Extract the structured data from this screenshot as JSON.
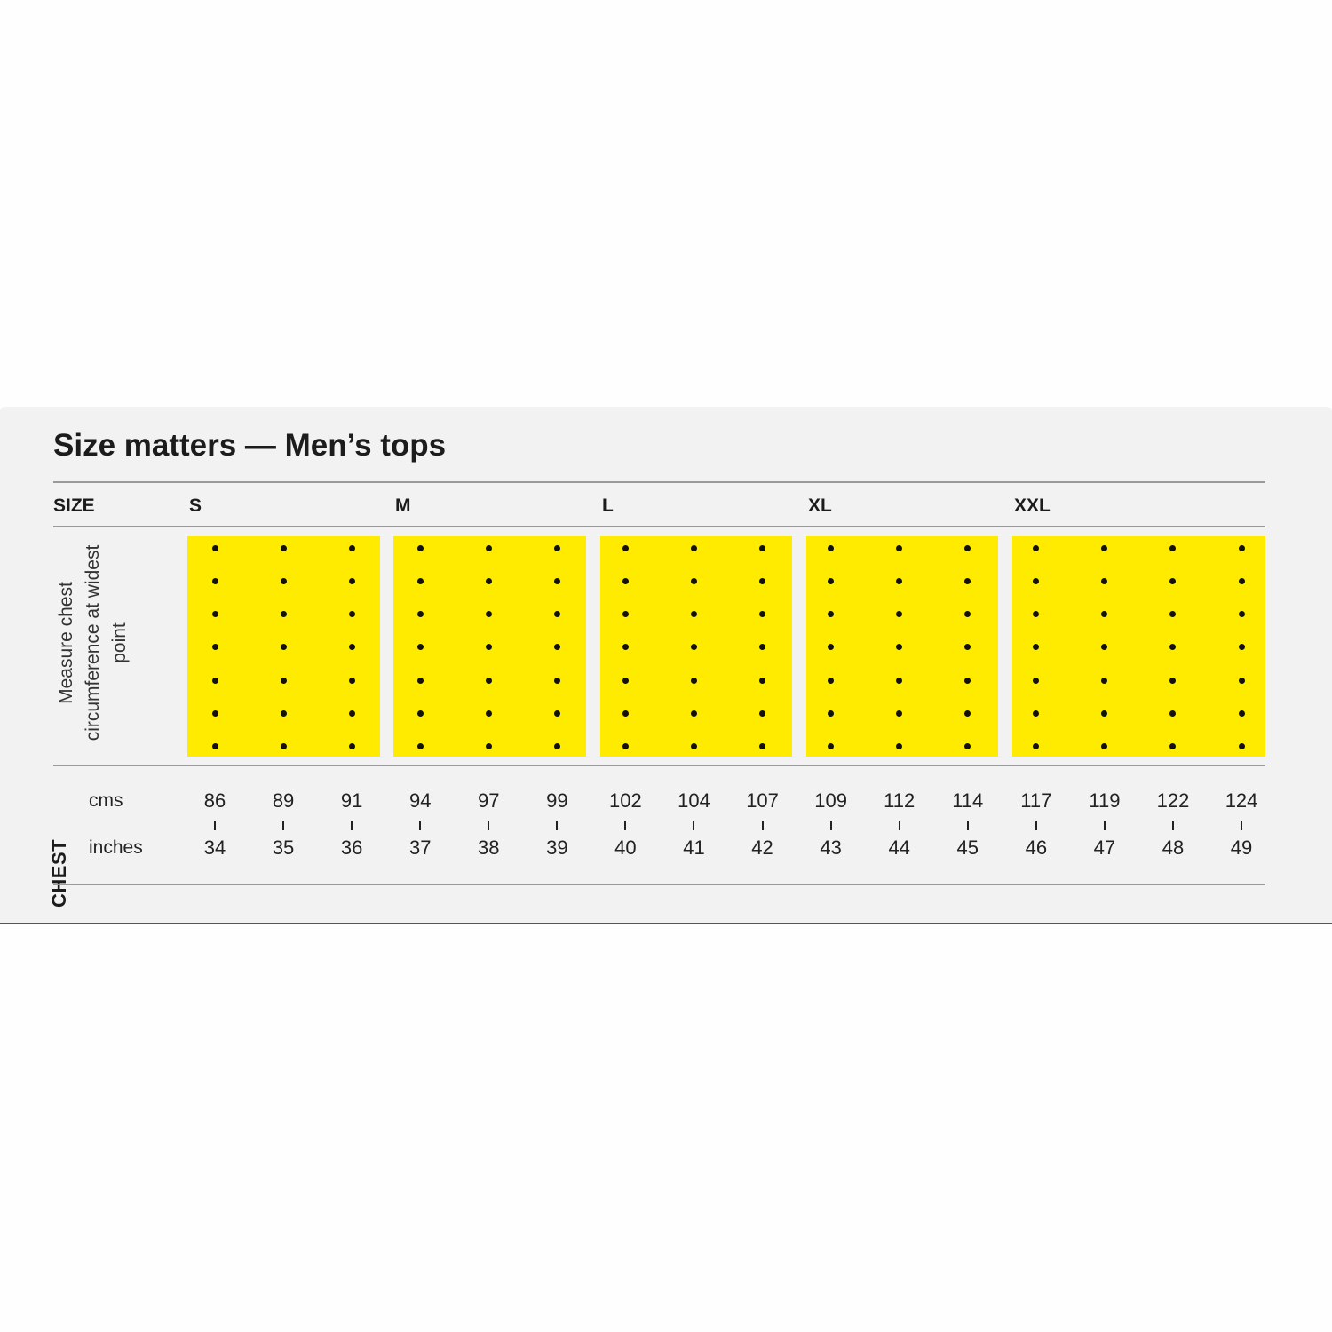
{
  "title": "Size matters — Men’s tops",
  "size_header": "SIZE",
  "measure_note": "Measure chest circumference at widest point",
  "chest_label": "CHEST",
  "units": {
    "cms": "cms",
    "inches": "inches"
  },
  "accent_color": "#ffeb00",
  "dot_rows": 7,
  "sizes": [
    {
      "label": "S",
      "cms": [
        "86",
        "89",
        "91"
      ],
      "inches": [
        "34",
        "35",
        "36"
      ]
    },
    {
      "label": "M",
      "cms": [
        "94",
        "97",
        "99"
      ],
      "inches": [
        "37",
        "38",
        "39"
      ]
    },
    {
      "label": "L",
      "cms": [
        "102",
        "104",
        "107"
      ],
      "inches": [
        "40",
        "41",
        "42"
      ]
    },
    {
      "label": "XL",
      "cms": [
        "109",
        "112",
        "114"
      ],
      "inches": [
        "43",
        "44",
        "45"
      ]
    },
    {
      "label": "XXL",
      "cms": [
        "117",
        "119",
        "122",
        "124"
      ],
      "inches": [
        "46",
        "47",
        "48",
        "49"
      ]
    }
  ]
}
